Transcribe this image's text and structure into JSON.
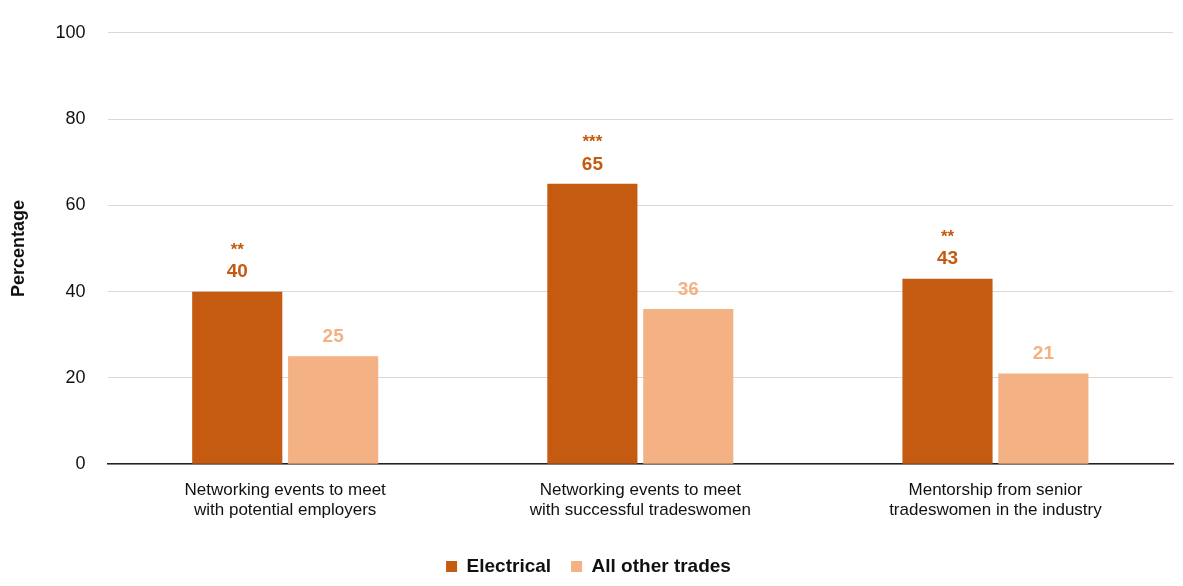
{
  "chart_data": {
    "type": "bar",
    "ylabel": "Percentage",
    "categories": [
      "Networking events to meet with potential employers",
      "Networking events to meet with successful tradeswomen",
      "Mentorship from senior tradeswomen in the industry"
    ],
    "series": [
      {
        "name": "Electrical",
        "color": "#c55a11",
        "values": [
          40,
          65,
          43
        ]
      },
      {
        "name": "All other trades",
        "color": "#f4b183",
        "values": [
          25,
          36,
          21
        ]
      }
    ],
    "ylim": [
      0,
      100
    ],
    "yticks": [
      0,
      20,
      40,
      60,
      80,
      100
    ],
    "grid": "y",
    "legend": "bottom",
    "data_labels": true,
    "annotations": [
      "**",
      "***",
      "**"
    ]
  }
}
